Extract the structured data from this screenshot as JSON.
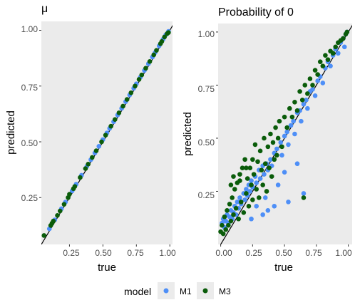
{
  "chart_data": [
    {
      "type": "scatter",
      "title": "μ",
      "xlabel": "true",
      "ylabel": "predicted",
      "xlim": [
        0.04,
        1.02
      ],
      "ylim": [
        0.04,
        1.04
      ],
      "x_ticks": [
        "0.25",
        "0.50",
        "0.75",
        "1.00"
      ],
      "y_ticks": [
        "0.25",
        "0.50",
        "0.75",
        "1.00"
      ],
      "reference_line": "y = x",
      "background": "#ebebeb",
      "grid": false,
      "series": [
        {
          "name": "M1",
          "color": "#4e8ff7",
          "points": [
            [
              0.1,
              0.11
            ],
            [
              0.14,
              0.15
            ],
            [
              0.19,
              0.2
            ],
            [
              0.22,
              0.23
            ],
            [
              0.27,
              0.28
            ],
            [
              0.3,
              0.31
            ],
            [
              0.34,
              0.35
            ],
            [
              0.38,
              0.39
            ],
            [
              0.41,
              0.42
            ],
            [
              0.44,
              0.45
            ],
            [
              0.47,
              0.48
            ],
            [
              0.5,
              0.51
            ],
            [
              0.53,
              0.54
            ],
            [
              0.55,
              0.56
            ],
            [
              0.58,
              0.59
            ],
            [
              0.61,
              0.62
            ],
            [
              0.64,
              0.65
            ],
            [
              0.67,
              0.68
            ],
            [
              0.7,
              0.71
            ],
            [
              0.73,
              0.74
            ],
            [
              0.75,
              0.76
            ],
            [
              0.78,
              0.79
            ],
            [
              0.81,
              0.82
            ],
            [
              0.84,
              0.85
            ],
            [
              0.87,
              0.88
            ],
            [
              0.89,
              0.9
            ],
            [
              0.92,
              0.93
            ],
            [
              0.95,
              0.96
            ],
            [
              0.97,
              0.98
            ],
            [
              0.99,
              0.995
            ]
          ]
        },
        {
          "name": "M3",
          "color": "#0a5c0a",
          "points": [
            [
              0.06,
              0.08
            ],
            [
              0.11,
              0.125
            ],
            [
              0.12,
              0.135
            ],
            [
              0.13,
              0.145
            ],
            [
              0.16,
              0.17
            ],
            [
              0.18,
              0.19
            ],
            [
              0.21,
              0.22
            ],
            [
              0.24,
              0.25
            ],
            [
              0.25,
              0.265
            ],
            [
              0.28,
              0.29
            ],
            [
              0.29,
              0.3
            ],
            [
              0.33,
              0.34
            ],
            [
              0.37,
              0.38
            ],
            [
              0.39,
              0.4
            ],
            [
              0.42,
              0.43
            ],
            [
              0.45,
              0.46
            ],
            [
              0.49,
              0.5
            ],
            [
              0.52,
              0.53
            ],
            [
              0.56,
              0.57
            ],
            [
              0.59,
              0.6
            ],
            [
              0.62,
              0.63
            ],
            [
              0.65,
              0.66
            ],
            [
              0.68,
              0.69
            ],
            [
              0.71,
              0.72
            ],
            [
              0.74,
              0.75
            ],
            [
              0.77,
              0.78
            ],
            [
              0.79,
              0.8
            ],
            [
              0.82,
              0.83
            ],
            [
              0.85,
              0.86
            ],
            [
              0.88,
              0.89
            ],
            [
              0.9,
              0.91
            ],
            [
              0.93,
              0.94
            ],
            [
              0.94,
              0.95
            ],
            [
              0.96,
              0.97
            ],
            [
              0.98,
              0.985
            ],
            [
              0.99,
              0.99
            ]
          ]
        }
      ]
    },
    {
      "type": "scatter",
      "title": "Probability of 0",
      "xlabel": "true",
      "ylabel": "predicted",
      "xlim": [
        -0.02,
        1.03
      ],
      "ylim": [
        0.0,
        1.04
      ],
      "x_ticks": [
        "0.00",
        "0.25",
        "0.50",
        "0.75",
        "1.00"
      ],
      "y_ticks": [
        "0.25",
        "0.50",
        "0.75",
        "1.00"
      ],
      "reference_line": "y = x",
      "background": "#ebebeb",
      "grid": false,
      "series": [
        {
          "name": "M1",
          "color": "#4e8ff7",
          "points": [
            [
              0.01,
              0.1
            ],
            [
              0.02,
              0.12
            ],
            [
              0.03,
              0.08
            ],
            [
              0.04,
              0.11
            ],
            [
              0.05,
              0.14
            ],
            [
              0.06,
              0.1
            ],
            [
              0.07,
              0.13
            ],
            [
              0.08,
              0.16
            ],
            [
              0.09,
              0.12
            ],
            [
              0.1,
              0.15
            ],
            [
              0.11,
              0.18
            ],
            [
              0.12,
              0.14
            ],
            [
              0.13,
              0.2
            ],
            [
              0.14,
              0.17
            ],
            [
              0.15,
              0.22
            ],
            [
              0.16,
              0.19
            ],
            [
              0.18,
              0.24
            ],
            [
              0.19,
              0.21
            ],
            [
              0.2,
              0.26
            ],
            [
              0.21,
              0.23
            ],
            [
              0.22,
              0.28
            ],
            [
              0.23,
              0.25
            ],
            [
              0.24,
              0.3
            ],
            [
              0.25,
              0.27
            ],
            [
              0.27,
              0.32
            ],
            [
              0.28,
              0.29
            ],
            [
              0.3,
              0.35
            ],
            [
              0.31,
              0.31
            ],
            [
              0.33,
              0.37
            ],
            [
              0.34,
              0.33
            ],
            [
              0.36,
              0.38
            ],
            [
              0.37,
              0.35
            ],
            [
              0.39,
              0.4
            ],
            [
              0.4,
              0.37
            ],
            [
              0.42,
              0.43
            ],
            [
              0.44,
              0.45
            ],
            [
              0.45,
              0.28
            ],
            [
              0.47,
              0.48
            ],
            [
              0.48,
              0.42
            ],
            [
              0.5,
              0.51
            ],
            [
              0.52,
              0.53
            ],
            [
              0.53,
              0.47
            ],
            [
              0.55,
              0.56
            ],
            [
              0.57,
              0.58
            ],
            [
              0.58,
              0.52
            ],
            [
              0.6,
              0.62
            ],
            [
              0.62,
              0.63
            ],
            [
              0.63,
              0.58
            ],
            [
              0.65,
              0.24
            ],
            [
              0.65,
              0.66
            ],
            [
              0.67,
              0.68
            ],
            [
              0.68,
              0.64
            ],
            [
              0.7,
              0.72
            ],
            [
              0.72,
              0.73
            ],
            [
              0.74,
              0.7
            ],
            [
              0.76,
              0.77
            ],
            [
              0.78,
              0.79
            ],
            [
              0.8,
              0.76
            ],
            [
              0.82,
              0.83
            ],
            [
              0.84,
              0.86
            ],
            [
              0.86,
              0.84
            ],
            [
              0.88,
              0.89
            ],
            [
              0.9,
              0.92
            ],
            [
              0.92,
              0.9
            ],
            [
              0.94,
              0.95
            ],
            [
              0.96,
              0.97
            ],
            [
              0.97,
              0.93
            ],
            [
              0.98,
              0.99
            ],
            [
              0.99,
              1.0
            ],
            [
              0.37,
              0.16
            ],
            [
              0.42,
              0.18
            ],
            [
              0.53,
              0.2
            ],
            [
              0.6,
              0.38
            ],
            [
              0.5,
              0.34
            ],
            [
              0.35,
              0.22
            ],
            [
              0.33,
              0.14
            ],
            [
              0.28,
              0.18
            ],
            [
              0.24,
              0.12
            ]
          ]
        },
        {
          "name": "M3",
          "color": "#0a5c0a",
          "points": [
            [
              0.0,
              0.06
            ],
            [
              0.01,
              0.09
            ],
            [
              0.02,
              0.05
            ],
            [
              0.03,
              0.13
            ],
            [
              0.04,
              0.07
            ],
            [
              0.05,
              0.16
            ],
            [
              0.06,
              0.09
            ],
            [
              0.07,
              0.19
            ],
            [
              0.08,
              0.11
            ],
            [
              0.09,
              0.22
            ],
            [
              0.1,
              0.14
            ],
            [
              0.11,
              0.26
            ],
            [
              0.12,
              0.17
            ],
            [
              0.13,
              0.29
            ],
            [
              0.14,
              0.12
            ],
            [
              0.15,
              0.33
            ],
            [
              0.16,
              0.2
            ],
            [
              0.17,
              0.36
            ],
            [
              0.18,
              0.15
            ],
            [
              0.19,
              0.4
            ],
            [
              0.2,
              0.24
            ],
            [
              0.21,
              0.31
            ],
            [
              0.22,
              0.18
            ],
            [
              0.23,
              0.36
            ],
            [
              0.24,
              0.28
            ],
            [
              0.25,
              0.21
            ],
            [
              0.26,
              0.33
            ],
            [
              0.27,
              0.47
            ],
            [
              0.28,
              0.26
            ],
            [
              0.29,
              0.39
            ],
            [
              0.3,
              0.22
            ],
            [
              0.31,
              0.44
            ],
            [
              0.32,
              0.35
            ],
            [
              0.33,
              0.28
            ],
            [
              0.34,
              0.5
            ],
            [
              0.35,
              0.38
            ],
            [
              0.36,
              0.25
            ],
            [
              0.37,
              0.46
            ],
            [
              0.38,
              0.36
            ],
            [
              0.39,
              0.52
            ],
            [
              0.4,
              0.32
            ],
            [
              0.41,
              0.48
            ],
            [
              0.42,
              0.4
            ],
            [
              0.43,
              0.55
            ],
            [
              0.44,
              0.42
            ],
            [
              0.45,
              0.5
            ],
            [
              0.46,
              0.58
            ],
            [
              0.48,
              0.46
            ],
            [
              0.5,
              0.6
            ],
            [
              0.52,
              0.55
            ],
            [
              0.54,
              0.64
            ],
            [
              0.56,
              0.6
            ],
            [
              0.58,
              0.67
            ],
            [
              0.6,
              0.63
            ],
            [
              0.62,
              0.72
            ],
            [
              0.64,
              0.68
            ],
            [
              0.65,
              0.22
            ],
            [
              0.66,
              0.75
            ],
            [
              0.68,
              0.71
            ],
            [
              0.7,
              0.78
            ],
            [
              0.72,
              0.75
            ],
            [
              0.74,
              0.82
            ],
            [
              0.76,
              0.8
            ],
            [
              0.78,
              0.86
            ],
            [
              0.8,
              0.84
            ],
            [
              0.82,
              0.89
            ],
            [
              0.84,
              0.87
            ],
            [
              0.86,
              0.91
            ],
            [
              0.88,
              0.9
            ],
            [
              0.9,
              0.93
            ],
            [
              0.92,
              0.95
            ],
            [
              0.94,
              0.96
            ],
            [
              0.96,
              0.97
            ],
            [
              0.98,
              0.99
            ],
            [
              0.99,
              1.0
            ],
            [
              0.2,
              0.36
            ],
            [
              0.15,
              0.3
            ],
            [
              0.1,
              0.32
            ],
            [
              0.25,
              0.4
            ],
            [
              0.08,
              0.28
            ]
          ]
        }
      ]
    }
  ],
  "legend": {
    "title": "model",
    "position": "bottom",
    "items": [
      {
        "label": "M1",
        "color": "#4e8ff7"
      },
      {
        "label": "M3",
        "color": "#0a5c0a"
      }
    ]
  }
}
